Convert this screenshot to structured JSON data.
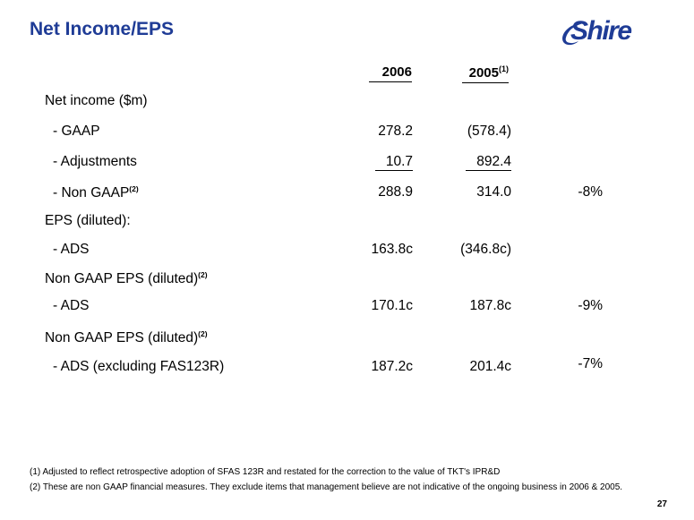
{
  "title": "Net Income/EPS",
  "logo_text": "Shire",
  "columns": {
    "c2006": "2006",
    "c2005": "2005",
    "c2005_sup": "(1)"
  },
  "rows": [
    {
      "label": "Net income ($m)",
      "sup": "",
      "v2006": "",
      "v2005": "",
      "change": ""
    },
    {
      "label": "- GAAP",
      "sup": "",
      "v2006": "278.2",
      "v2005": "(578.4)",
      "change": ""
    },
    {
      "label": "- Adjustments",
      "sup": "",
      "v2006": "10.7",
      "v2005": "892.4",
      "change": ""
    },
    {
      "label": "- Non GAAP",
      "sup": "(2)",
      "v2006": "288.9",
      "v2005": "314.0",
      "change": "-8%"
    },
    {
      "label": "EPS (diluted):",
      "sup": "",
      "v2006": "",
      "v2005": "",
      "change": ""
    },
    {
      "label": "- ADS",
      "sup": "",
      "v2006": "163.8c",
      "v2005": "(346.8c)",
      "change": ""
    },
    {
      "label": "Non GAAP EPS (diluted)",
      "sup": "(2)",
      "v2006": "",
      "v2005": "",
      "change": ""
    },
    {
      "label": "- ADS",
      "sup": "",
      "v2006": "170.1c",
      "v2005": "187.8c",
      "change": "-9%"
    },
    {
      "label": "Non GAAP EPS (diluted)",
      "sup": "(2)",
      "v2006": "",
      "v2005": "",
      "change": ""
    },
    {
      "label": "- ADS (excluding FAS123R)",
      "sup": "",
      "v2006": "187.2c",
      "v2005": "201.4c",
      "change": "-7%"
    }
  ],
  "footnotes": [
    "(1) Adjusted to reflect retrospective adoption of SFAS 123R and restated for the correction to the value of TKT's IPR&D",
    "(2) These are non GAAP financial measures. They exclude items that management believe are not indicative of the ongoing business in 2006 & 2005."
  ],
  "page_number": "27",
  "colors": {
    "brand": "#1f3c96"
  }
}
